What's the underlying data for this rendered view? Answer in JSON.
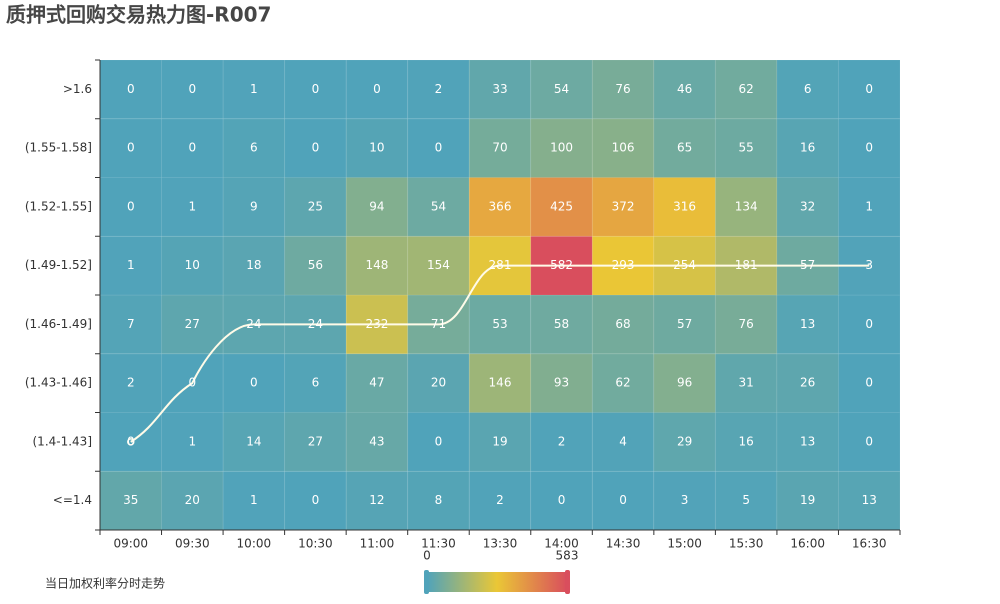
{
  "chart_data": {
    "type": "heatmap",
    "title": "质押式回购交易热力图-R007",
    "x": [
      "09:00",
      "09:30",
      "10:00",
      "10:30",
      "11:00",
      "11:30",
      "13:30",
      "14:00",
      "14:30",
      "15:00",
      "15:30",
      "16:00",
      "16:30"
    ],
    "y": [
      "<=1.4",
      "(1.4-1.43]",
      "(1.43-1.46]",
      "(1.46-1.49]",
      "(1.49-1.52]",
      "(1.52-1.55]",
      "(1.55-1.58]",
      ">1.6"
    ],
    "values": [
      [
        35,
        20,
        1,
        0,
        12,
        8,
        2,
        0,
        0,
        3,
        5,
        19,
        13
      ],
      [
        0,
        1,
        14,
        27,
        43,
        0,
        19,
        2,
        4,
        29,
        16,
        13,
        0
      ],
      [
        2,
        0,
        0,
        6,
        47,
        20,
        146,
        93,
        62,
        96,
        31,
        26,
        0
      ],
      [
        7,
        27,
        24,
        24,
        232,
        71,
        53,
        58,
        68,
        57,
        76,
        13,
        0
      ],
      [
        1,
        10,
        18,
        56,
        148,
        154,
        281,
        582,
        293,
        254,
        181,
        57,
        3
      ],
      [
        0,
        1,
        9,
        25,
        94,
        54,
        366,
        425,
        372,
        316,
        134,
        32,
        1
      ],
      [
        0,
        0,
        6,
        0,
        10,
        0,
        70,
        100,
        106,
        65,
        55,
        16,
        0
      ],
      [
        0,
        0,
        1,
        0,
        0,
        2,
        33,
        54,
        76,
        46,
        62,
        6,
        0
      ]
    ],
    "visual_map": {
      "range": [
        0,
        583
      ],
      "colors": [
        "#50a3ba",
        "#eac736",
        "#d94e5d"
      ]
    },
    "line": {
      "name": "当日加权利率分时走势",
      "color": "#fffbe8",
      "values": [
        "(1.4-1.43]",
        "(1.43-1.46]",
        "(1.46-1.49]",
        "(1.46-1.49]",
        "(1.46-1.49]",
        "(1.46-1.49]",
        "(1.49-1.52]",
        "(1.49-1.52]",
        "(1.49-1.52]",
        "(1.49-1.52]",
        "(1.49-1.52]",
        "(1.49-1.52]",
        "(1.49-1.52]"
      ]
    }
  }
}
